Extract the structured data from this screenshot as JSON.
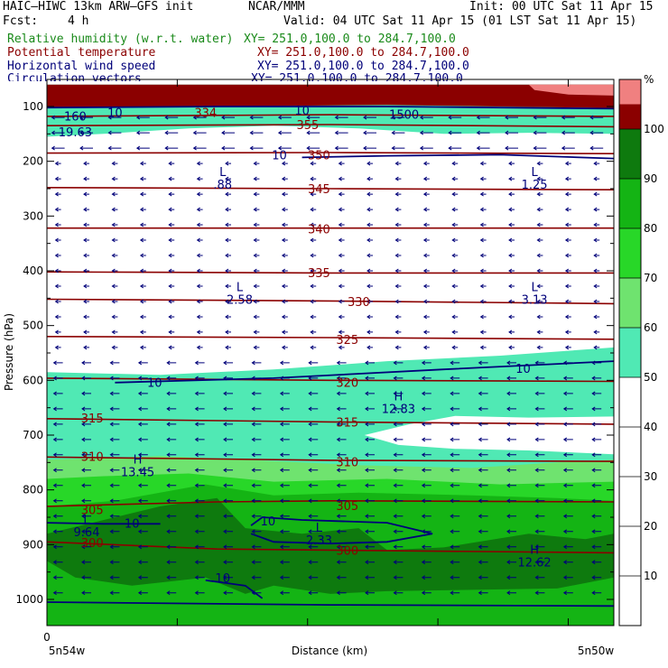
{
  "header": {
    "model": "HAIC–HIWC 13km ARW–GFS init",
    "org": "NCAR/MMM",
    "init": "Init: 00 UTC Sat 11 Apr 15",
    "fcst_label": "Fcst:",
    "fcst_value": "4 h",
    "valid": "Valid: 04 UTC Sat 11 Apr 15 (01 LST Sat 11 Apr 15)"
  },
  "fields": [
    {
      "name": "Relative humidity (w.r.t. water)",
      "xy": "XY= 251.0,100.0 to 284.7,100.0",
      "color": "#1a8a1a"
    },
    {
      "name": "Potential temperature",
      "xy": "XY= 251.0,100.0 to 284.7,100.0",
      "color": "#8b0000"
    },
    {
      "name": "Horizontal wind speed",
      "xy": "XY= 251.0,100.0 to 284.7,100.0",
      "color": "#00007a"
    },
    {
      "name": "Circulation vectors",
      "xy": "XY= 251.0,100.0 to 284.7,100.0",
      "color": "#00007a"
    }
  ],
  "chart_data": {
    "type": "cross-section",
    "ylabel": "Pressure (hPa)",
    "xlabel": "Distance (km)",
    "x_start_tick": "0",
    "x_left_label": "5n54w",
    "x_right_label": "5n50w",
    "yticks": [
      100,
      200,
      300,
      400,
      500,
      600,
      700,
      800,
      900,
      1000
    ],
    "ylim": [
      1050,
      60
    ],
    "colorbar": {
      "unit": "%",
      "ticks": [
        10,
        20,
        30,
        40,
        50,
        60,
        70,
        80,
        90,
        100
      ],
      "fills": [
        {
          "from": 50,
          "to": 60,
          "color": "#50e9b4"
        },
        {
          "from": 60,
          "to": 70,
          "color": "#6fe36f"
        },
        {
          "from": 70,
          "to": 80,
          "color": "#28d728"
        },
        {
          "from": 80,
          "to": 90,
          "color": "#14b414"
        },
        {
          "from": 90,
          "to": 100,
          "color": "#0e7a0e"
        },
        {
          "from": 100,
          "to": 105,
          "color": "#8b0000"
        },
        {
          "from": 105,
          "to": 110,
          "color": "#f08080"
        }
      ]
    },
    "theta_labels": [
      {
        "text": "355",
        "x": 0.46,
        "p": 135
      },
      {
        "text": "350",
        "x": 0.48,
        "p": 190
      },
      {
        "text": "345",
        "x": 0.48,
        "p": 252
      },
      {
        "text": "340",
        "x": 0.48,
        "p": 325
      },
      {
        "text": "335",
        "x": 0.48,
        "p": 405
      },
      {
        "text": "330",
        "x": 0.55,
        "p": 458
      },
      {
        "text": "325",
        "x": 0.53,
        "p": 527
      },
      {
        "text": "320",
        "x": 0.53,
        "p": 605
      },
      {
        "text": "315",
        "x": 0.08,
        "p": 670
      },
      {
        "text": "315",
        "x": 0.53,
        "p": 678
      },
      {
        "text": "310",
        "x": 0.08,
        "p": 740
      },
      {
        "text": "310",
        "x": 0.53,
        "p": 750
      },
      {
        "text": "305",
        "x": 0.08,
        "p": 838
      },
      {
        "text": "305",
        "x": 0.53,
        "p": 830
      },
      {
        "text": "300",
        "x": 0.08,
        "p": 898
      },
      {
        "text": "300",
        "x": 0.53,
        "p": 912
      }
    ],
    "wind_labels": [
      {
        "text": "10",
        "x": 0.12,
        "p": 112
      },
      {
        "text": "10",
        "x": 0.45,
        "p": 108
      },
      {
        "text": "10",
        "x": 0.41,
        "p": 190
      },
      {
        "text": "10",
        "x": 0.19,
        "p": 605
      },
      {
        "text": "10",
        "x": 0.84,
        "p": 580
      },
      {
        "text": "10",
        "x": 0.15,
        "p": 862
      },
      {
        "text": "10",
        "x": 0.39,
        "p": 858
      },
      {
        "text": "10",
        "x": 0.31,
        "p": 962
      }
    ],
    "other_labels": [
      {
        "text": "334",
        "x": 0.28,
        "p": 112,
        "kind": "theta"
      },
      {
        "text": "1500",
        "x": 0.63,
        "p": 116,
        "kind": "wind"
      },
      {
        "text": "160",
        "x": 0.05,
        "p": 119,
        "kind": "wind"
      },
      {
        "text": "19.63",
        "x": 0.05,
        "p": 148,
        "kind": "wind"
      }
    ],
    "extrema": [
      {
        "kind": "L",
        "value": ".88",
        "x": 0.31,
        "p": 230
      },
      {
        "kind": "L",
        "value": "1.25",
        "x": 0.86,
        "p": 230
      },
      {
        "kind": "L",
        "value": "2.58",
        "x": 0.34,
        "p": 440
      },
      {
        "kind": "L",
        "value": "3.13",
        "x": 0.86,
        "p": 440
      },
      {
        "kind": "H",
        "value": "12.83",
        "x": 0.62,
        "p": 640
      },
      {
        "kind": "H",
        "value": "13.45",
        "x": 0.16,
        "p": 755
      },
      {
        "kind": "L",
        "value": "9.64",
        "x": 0.07,
        "p": 865
      },
      {
        "kind": "L",
        "value": "2.33",
        "x": 0.48,
        "p": 880
      },
      {
        "kind": "H",
        "value": "12.62",
        "x": 0.86,
        "p": 920
      }
    ]
  }
}
